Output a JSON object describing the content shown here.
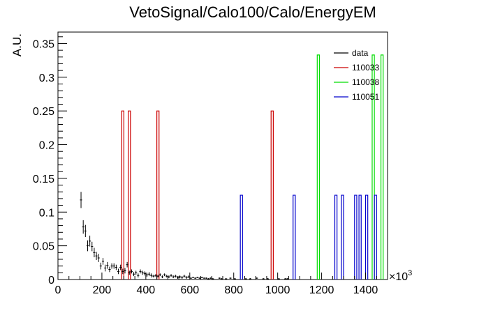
{
  "chart_data": {
    "type": "histogram",
    "title": "VetoSignal/Calo100/Calo/EnergyEM",
    "ylabel": "A.U.",
    "xlabel": "",
    "x_multiplier": "×10",
    "x_multiplier_exp": "3",
    "xlim": [
      0,
      1500
    ],
    "ylim": [
      0,
      0.367
    ],
    "x_ticks": [
      0,
      200,
      400,
      600,
      800,
      1000,
      1200,
      1400
    ],
    "y_ticks": [
      0,
      0.05,
      0.1,
      0.15,
      0.2,
      0.25,
      0.3,
      0.35
    ],
    "x_tick_labels": [
      "0",
      "200",
      "400",
      "600",
      "800",
      "1000",
      "1200",
      "1400"
    ],
    "y_tick_labels": [
      "0",
      "0.05",
      "0.1",
      "0.15",
      "0.2",
      "0.25",
      "0.3",
      "0.35"
    ],
    "legend_position": "top-right",
    "bin_width": 10,
    "series": [
      {
        "name": "data",
        "kind": "points",
        "color": "#000000",
        "points": [
          [
            105,
            0.118,
            0.012
          ],
          [
            115,
            0.078,
            0.01
          ],
          [
            125,
            0.072,
            0.009
          ],
          [
            135,
            0.05,
            0.008
          ],
          [
            145,
            0.057,
            0.008
          ],
          [
            155,
            0.049,
            0.007
          ],
          [
            165,
            0.04,
            0.007
          ],
          [
            175,
            0.035,
            0.006
          ],
          [
            185,
            0.032,
            0.006
          ],
          [
            195,
            0.02,
            0.005
          ],
          [
            205,
            0.027,
            0.005
          ],
          [
            215,
            0.017,
            0.005
          ],
          [
            225,
            0.021,
            0.005
          ],
          [
            235,
            0.015,
            0.004
          ],
          [
            245,
            0.02,
            0.004
          ],
          [
            255,
            0.02,
            0.004
          ],
          [
            265,
            0.018,
            0.004
          ],
          [
            275,
            0.012,
            0.004
          ],
          [
            285,
            0.018,
            0.004
          ],
          [
            295,
            0.012,
            0.004
          ],
          [
            305,
            0.013,
            0.004
          ],
          [
            315,
            0.022,
            0.004
          ],
          [
            325,
            0.01,
            0.003
          ],
          [
            335,
            0.012,
            0.003
          ],
          [
            345,
            0.008,
            0.003
          ],
          [
            355,
            0.01,
            0.003
          ],
          [
            365,
            0.006,
            0.003
          ],
          [
            375,
            0.012,
            0.003
          ],
          [
            385,
            0.01,
            0.003
          ],
          [
            395,
            0.009,
            0.003
          ],
          [
            405,
            0.007,
            0.003
          ],
          [
            415,
            0.008,
            0.003
          ],
          [
            425,
            0.006,
            0.003
          ],
          [
            435,
            0.005,
            0.002
          ],
          [
            445,
            0.006,
            0.002
          ],
          [
            455,
            0.005,
            0.002
          ],
          [
            465,
            0.007,
            0.002
          ],
          [
            475,
            0.004,
            0.002
          ],
          [
            485,
            0.007,
            0.002
          ],
          [
            495,
            0.005,
            0.002
          ],
          [
            505,
            0.004,
            0.002
          ],
          [
            515,
            0.006,
            0.002
          ],
          [
            525,
            0.004,
            0.002
          ],
          [
            535,
            0.005,
            0.002
          ],
          [
            545,
            0.003,
            0.002
          ],
          [
            555,
            0.004,
            0.002
          ],
          [
            565,
            0.003,
            0.002
          ],
          [
            575,
            0.005,
            0.002
          ],
          [
            585,
            0.003,
            0.002
          ],
          [
            595,
            0.004,
            0.002
          ],
          [
            605,
            0.002,
            0.001
          ],
          [
            615,
            0.003,
            0.001
          ],
          [
            625,
            0.002,
            0.001
          ],
          [
            635,
            0.003,
            0.001
          ],
          [
            645,
            0.002,
            0.001
          ],
          [
            655,
            0.003,
            0.001
          ],
          [
            665,
            0.002,
            0.001
          ],
          [
            675,
            0.002,
            0.001
          ],
          [
            685,
            0.001,
            0.001
          ],
          [
            695,
            0.002,
            0.001
          ],
          [
            705,
            0.001,
            0.001
          ],
          [
            735,
            0.002,
            0.001
          ],
          [
            745,
            0.001,
            0.001
          ],
          [
            765,
            0.001,
            0.001
          ],
          [
            785,
            0.002,
            0.001
          ],
          [
            805,
            0.001,
            0.001
          ],
          [
            855,
            0.001,
            0.001
          ],
          [
            875,
            0.001,
            0.001
          ],
          [
            905,
            0.002,
            0.001
          ],
          [
            935,
            0.001,
            0.001
          ],
          [
            955,
            0.001,
            0.001
          ],
          [
            1005,
            0.001,
            0.001
          ],
          [
            1035,
            0.001,
            0.001
          ],
          [
            1045,
            0.001,
            0.001
          ]
        ]
      },
      {
        "name": "110033",
        "kind": "bars",
        "color": "#cc0000",
        "bars": [
          [
            290,
            0.25
          ],
          [
            320,
            0.25
          ],
          [
            450,
            0.25
          ],
          [
            970,
            0.25
          ]
        ]
      },
      {
        "name": "110038",
        "kind": "bars",
        "color": "#00dd00",
        "bars": [
          [
            1180,
            0.333
          ],
          [
            1430,
            0.333
          ],
          [
            1470,
            0.333
          ]
        ]
      },
      {
        "name": "110051",
        "kind": "bars",
        "color": "#0000cc",
        "bars": [
          [
            830,
            0.125
          ],
          [
            1070,
            0.125
          ],
          [
            1260,
            0.125
          ],
          [
            1290,
            0.125
          ],
          [
            1350,
            0.125
          ],
          [
            1370,
            0.125
          ],
          [
            1400,
            0.125
          ],
          [
            1440,
            0.125
          ]
        ]
      }
    ]
  }
}
